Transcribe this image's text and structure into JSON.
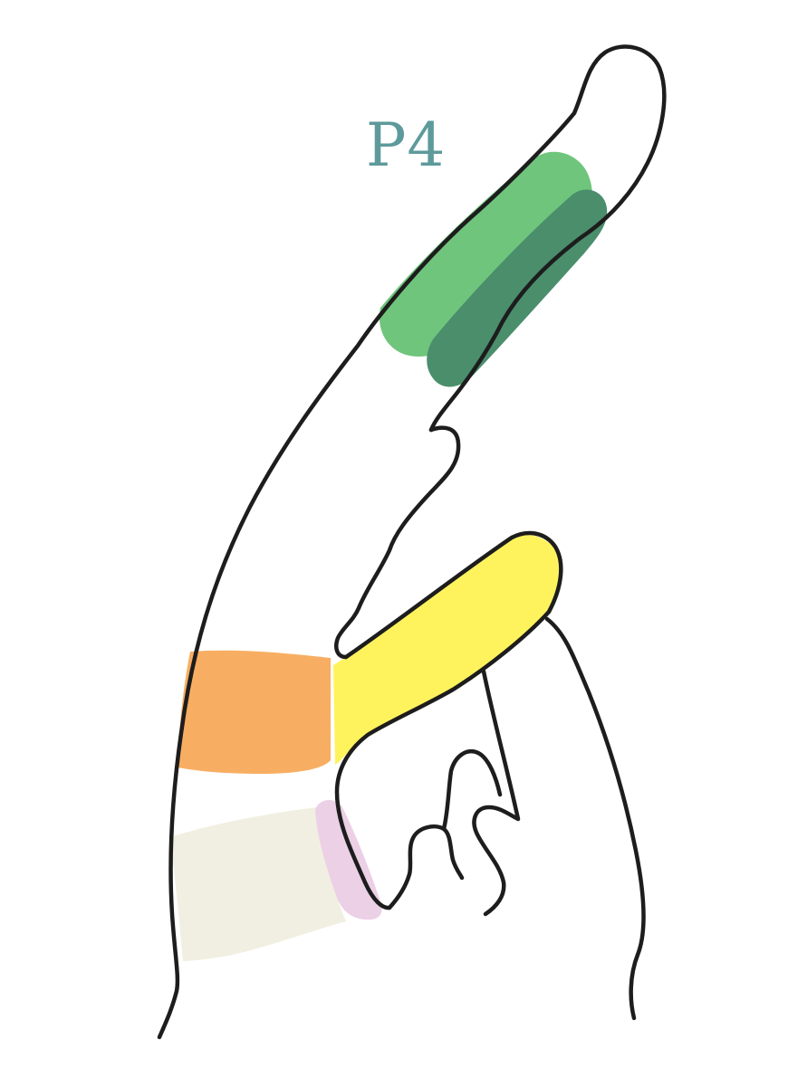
{
  "label": {
    "text": "P4"
  },
  "colors": {
    "label": "#5e9a9b",
    "outline": "#1d1d1d",
    "light_green": "#6fc57c",
    "dark_green": "#4a8e6c",
    "yellow": "#fff35d",
    "orange": "#f8ae62",
    "pink": "#ecd0e6",
    "beige": "#f1efe1"
  }
}
